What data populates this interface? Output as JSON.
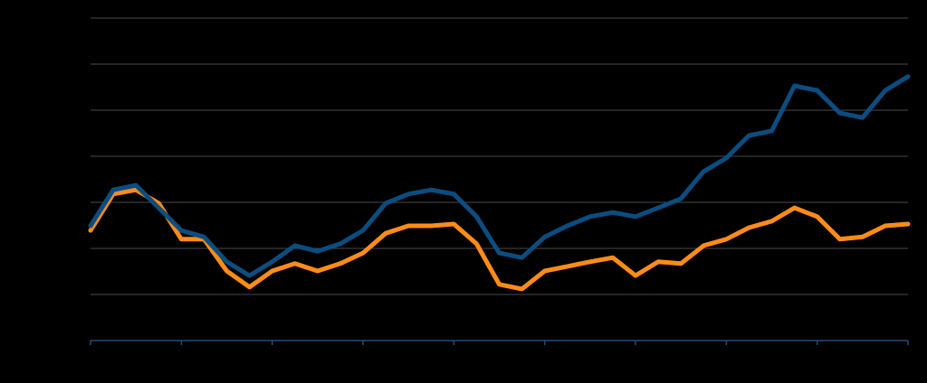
{
  "chart_data": {
    "type": "line",
    "x": [
      0,
      0.25,
      0.5,
      0.75,
      1,
      1.25,
      1.5,
      1.75,
      2,
      2.25,
      2.5,
      2.75,
      3,
      3.25,
      3.5,
      3.75,
      4,
      4.25,
      4.5,
      4.75,
      5,
      5.25,
      5.5,
      5.75,
      6,
      6.25,
      6.5,
      6.75,
      7,
      7.25,
      7.5,
      7.75,
      8,
      8.25,
      8.5,
      8.75,
      9
    ],
    "series": [
      {
        "color": "#0b4d80",
        "values": [
          2.49,
          3.27,
          3.37,
          2.88,
          2.39,
          2.25,
          1.71,
          1.41,
          1.71,
          2.06,
          1.94,
          2.1,
          2.39,
          2.98,
          3.18,
          3.27,
          3.18,
          2.69,
          1.9,
          1.8,
          2.25,
          2.49,
          2.69,
          2.78,
          2.69,
          2.88,
          3.08,
          3.67,
          3.96,
          4.45,
          4.55,
          5.53,
          5.43,
          4.94,
          4.84,
          5.43,
          5.73
        ]
      },
      {
        "color": "#ff8c19",
        "values": [
          2.39,
          3.18,
          3.27,
          2.98,
          2.2,
          2.2,
          1.51,
          1.16,
          1.51,
          1.67,
          1.51,
          1.67,
          1.9,
          2.33,
          2.49,
          2.49,
          2.53,
          2.1,
          1.22,
          1.12,
          1.51,
          1.61,
          1.71,
          1.8,
          1.41,
          1.71,
          1.67,
          2.06,
          2.2,
          2.45,
          2.59,
          2.88,
          2.69,
          2.2,
          2.25,
          2.49,
          2.53
        ]
      }
    ],
    "xlim": [
      0,
      9
    ],
    "xticks": [
      0,
      1,
      2,
      3,
      4,
      5,
      6,
      7,
      8,
      9
    ],
    "ylim": [
      0,
      7
    ],
    "yticks": [
      0,
      1,
      2,
      3,
      4,
      5,
      6,
      7
    ],
    "grid": true
  }
}
